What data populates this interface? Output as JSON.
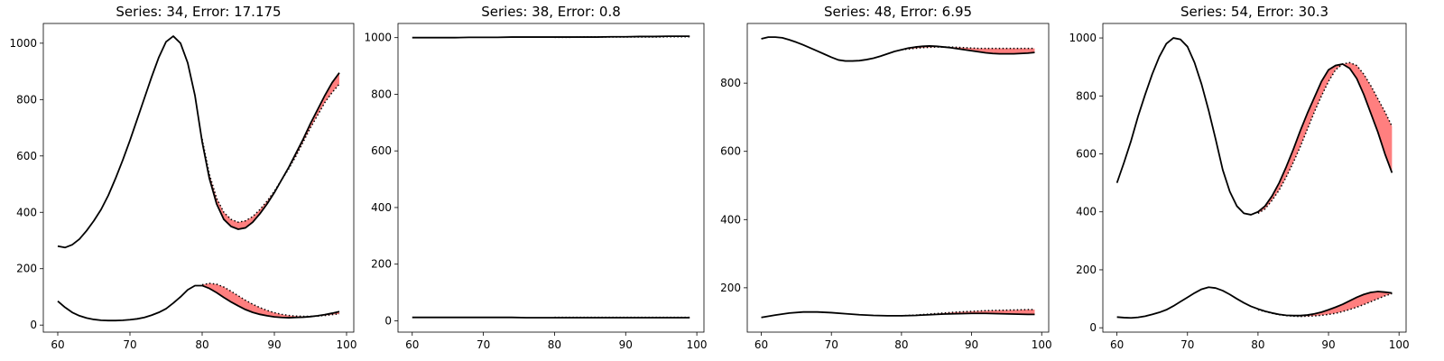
{
  "chart_data": [
    {
      "type": "line",
      "title": "Series: 34, Error: 17.175",
      "xlim": [
        58,
        101
      ],
      "ylim": [
        -25,
        1070
      ],
      "xticks": [
        60,
        70,
        80,
        90,
        100
      ],
      "yticks": [
        0,
        200,
        400,
        600,
        800,
        1000
      ],
      "upper": {
        "actual_x": [
          60,
          61,
          62,
          63,
          64,
          65,
          66,
          67,
          68,
          69,
          70,
          71,
          72,
          73,
          74,
          75,
          76,
          77,
          78,
          79,
          80,
          81,
          82,
          83,
          84,
          85,
          86,
          87,
          88,
          89,
          90,
          91,
          92,
          93,
          94,
          95,
          96,
          97,
          98,
          99
        ],
        "actual_y": [
          280,
          275,
          285,
          305,
          335,
          370,
          410,
          460,
          520,
          585,
          655,
          730,
          805,
          880,
          950,
          1005,
          1025,
          1000,
          930,
          815,
          650,
          520,
          430,
          375,
          350,
          340,
          345,
          365,
          395,
          430,
          470,
          515,
          560,
          610,
          660,
          715,
          765,
          815,
          860,
          895
        ],
        "forecast_x": [
          80,
          81,
          82,
          83,
          84,
          85,
          86,
          87,
          88,
          89,
          90,
          91,
          92,
          93,
          94,
          95,
          96,
          97,
          98,
          99
        ],
        "forecast_y": [
          660,
          535,
          450,
          400,
          375,
          365,
          370,
          385,
          410,
          440,
          475,
          515,
          555,
          600,
          650,
          700,
          745,
          790,
          825,
          855
        ]
      },
      "lower": {
        "actual_x": [
          60,
          61,
          62,
          63,
          64,
          65,
          66,
          67,
          68,
          69,
          70,
          71,
          72,
          73,
          74,
          75,
          76,
          77,
          78,
          79,
          80,
          81,
          82,
          83,
          84,
          85,
          86,
          87,
          88,
          89,
          90,
          91,
          92,
          93,
          94,
          95,
          96,
          97,
          98,
          99
        ],
        "actual_y": [
          85,
          63,
          45,
          33,
          25,
          20,
          17,
          16,
          16,
          17,
          19,
          22,
          27,
          35,
          45,
          58,
          78,
          100,
          125,
          140,
          140,
          130,
          115,
          98,
          82,
          68,
          55,
          45,
          38,
          33,
          29,
          27,
          26,
          27,
          28,
          30,
          33,
          37,
          42,
          48
        ],
        "forecast_x": [
          80,
          81,
          82,
          83,
          84,
          85,
          86,
          87,
          88,
          89,
          90,
          91,
          92,
          93,
          94,
          95,
          96,
          97,
          98,
          99
        ],
        "forecast_y": [
          143,
          148,
          145,
          135,
          120,
          104,
          88,
          74,
          62,
          52,
          44,
          38,
          34,
          32,
          31,
          31,
          32,
          34,
          37,
          40
        ]
      }
    },
    {
      "type": "line",
      "title": "Series: 38, Error: 0.8",
      "xlim": [
        58,
        101
      ],
      "ylim": [
        -40,
        1050
      ],
      "xticks": [
        60,
        70,
        80,
        90,
        100
      ],
      "yticks": [
        0,
        200,
        400,
        600,
        800,
        1000
      ],
      "upper": {
        "actual_x": [
          60,
          62,
          64,
          66,
          68,
          70,
          72,
          74,
          76,
          78,
          80,
          82,
          84,
          86,
          88,
          90,
          92,
          94,
          96,
          98,
          99
        ],
        "actual_y": [
          1000,
          1000,
          1000,
          1000,
          1001,
          1001,
          1001,
          1002,
          1002,
          1002,
          1002,
          1002,
          1002,
          1002,
          1003,
          1003,
          1004,
          1004,
          1005,
          1005,
          1005
        ],
        "forecast_x": [
          80,
          82,
          84,
          86,
          88,
          90,
          92,
          94,
          96,
          98,
          99
        ],
        "forecast_y": [
          1001,
          1001,
          1002,
          1002,
          1002,
          1002,
          1002,
          1002,
          1003,
          1003,
          1003
        ]
      },
      "lower": {
        "actual_x": [
          60,
          62,
          64,
          66,
          68,
          70,
          72,
          74,
          76,
          78,
          80,
          82,
          84,
          86,
          88,
          90,
          92,
          94,
          96,
          98,
          99
        ],
        "actual_y": [
          12,
          12,
          12,
          12,
          12,
          12,
          12,
          12,
          11,
          11,
          11,
          11,
          11,
          11,
          11,
          11,
          11,
          11,
          11,
          11,
          11
        ],
        "forecast_x": [
          80,
          82,
          84,
          86,
          88,
          90,
          92,
          94,
          96,
          98,
          99
        ],
        "forecast_y": [
          12,
          12,
          12,
          12,
          12,
          12,
          12,
          12,
          12,
          12,
          12
        ]
      }
    },
    {
      "type": "line",
      "title": "Series: 48, Error: 6.95",
      "xlim": [
        58,
        101
      ],
      "ylim": [
        70,
        975
      ],
      "xticks": [
        60,
        70,
        80,
        90,
        100
      ],
      "yticks": [
        200,
        400,
        600,
        800
      ],
      "upper": {
        "actual_x": [
          60,
          61,
          62,
          63,
          64,
          65,
          66,
          67,
          68,
          69,
          70,
          71,
          72,
          73,
          74,
          75,
          76,
          77,
          78,
          79,
          80,
          81,
          82,
          83,
          84,
          85,
          86,
          87,
          88,
          89,
          90,
          91,
          92,
          93,
          94,
          95,
          96,
          97,
          98,
          99
        ],
        "actual_y": [
          930,
          935,
          935,
          933,
          927,
          920,
          912,
          903,
          894,
          885,
          876,
          868,
          865,
          865,
          866,
          869,
          873,
          879,
          886,
          893,
          898,
          903,
          906,
          908,
          909,
          908,
          906,
          904,
          901,
          898,
          895,
          892,
          889,
          887,
          886,
          886,
          886,
          887,
          888,
          890
        ],
        "forecast_x": [
          80,
          81,
          82,
          83,
          84,
          85,
          86,
          87,
          88,
          89,
          90,
          91,
          92,
          93,
          94,
          95,
          96,
          97,
          98,
          99
        ],
        "forecast_y": [
          898,
          900,
          902,
          904,
          905,
          906,
          906,
          906,
          905,
          904,
          903,
          902,
          902,
          902,
          902,
          902,
          902,
          902,
          902,
          902
        ]
      },
      "lower": {
        "actual_x": [
          60,
          62,
          64,
          66,
          68,
          70,
          72,
          74,
          76,
          78,
          80,
          82,
          84,
          86,
          88,
          90,
          92,
          94,
          96,
          98,
          99
        ],
        "actual_y": [
          113,
          120,
          126,
          129,
          129,
          127,
          124,
          121,
          119,
          118,
          118,
          119,
          121,
          123,
          124,
          125,
          125,
          124,
          123,
          122,
          122
        ],
        "forecast_x": [
          80,
          82,
          84,
          86,
          88,
          90,
          92,
          94,
          96,
          98,
          99
        ],
        "forecast_y": [
          118,
          120,
          123,
          126,
          129,
          131,
          133,
          134,
          135,
          136,
          136
        ]
      }
    },
    {
      "type": "line",
      "title": "Series: 54, Error: 30.3",
      "xlim": [
        58,
        101
      ],
      "ylim": [
        -15,
        1050
      ],
      "xticks": [
        60,
        70,
        80,
        90,
        100
      ],
      "yticks": [
        0,
        200,
        400,
        600,
        800,
        1000
      ],
      "upper": {
        "actual_x": [
          60,
          61,
          62,
          63,
          64,
          65,
          66,
          67,
          68,
          69,
          70,
          71,
          72,
          73,
          74,
          75,
          76,
          77,
          78,
          79,
          80,
          81,
          82,
          83,
          84,
          85,
          86,
          87,
          88,
          89,
          90,
          91,
          92,
          93,
          94,
          95,
          96,
          97,
          98,
          99
        ],
        "actual_y": [
          500,
          570,
          645,
          730,
          805,
          875,
          935,
          980,
          1000,
          995,
          970,
          915,
          840,
          750,
          650,
          545,
          470,
          420,
          395,
          390,
          400,
          420,
          455,
          500,
          555,
          615,
          680,
          740,
          795,
          850,
          890,
          905,
          910,
          895,
          860,
          805,
          740,
          675,
          600,
          535
        ],
        "forecast_x": [
          80,
          81,
          82,
          83,
          84,
          85,
          86,
          87,
          88,
          89,
          90,
          91,
          92,
          93,
          94,
          95,
          96,
          97,
          98,
          99
        ],
        "forecast_y": [
          395,
          410,
          440,
          475,
          520,
          570,
          625,
          685,
          745,
          800,
          850,
          890,
          910,
          915,
          905,
          875,
          835,
          790,
          745,
          695
        ]
      },
      "lower": {
        "actual_x": [
          60,
          61,
          62,
          63,
          64,
          65,
          66,
          67,
          68,
          69,
          70,
          71,
          72,
          73,
          74,
          75,
          76,
          77,
          78,
          79,
          80,
          81,
          82,
          83,
          84,
          85,
          86,
          87,
          88,
          89,
          90,
          91,
          92,
          93,
          94,
          95,
          96,
          97,
          98,
          99
        ],
        "actual_y": [
          37,
          35,
          34,
          36,
          40,
          46,
          53,
          62,
          75,
          90,
          105,
          120,
          133,
          140,
          137,
          128,
          115,
          100,
          86,
          74,
          65,
          57,
          51,
          46,
          43,
          42,
          42,
          44,
          48,
          54,
          62,
          71,
          81,
          93,
          105,
          115,
          122,
          125,
          123,
          120
        ],
        "forecast_x": [
          80,
          81,
          82,
          83,
          84,
          85,
          86,
          87,
          88,
          89,
          90,
          91,
          92,
          93,
          94,
          95,
          96,
          97,
          98,
          99
        ],
        "forecast_y": [
          62,
          56,
          50,
          45,
          42,
          40,
          39,
          40,
          41,
          43,
          46,
          50,
          56,
          63,
          71,
          80,
          90,
          100,
          110,
          118
        ]
      }
    }
  ],
  "style": {
    "actual_color": "#000000",
    "forecast_color": "#000000",
    "error_fill_color": "#ff0000",
    "error_fill_opacity": 0.5
  }
}
